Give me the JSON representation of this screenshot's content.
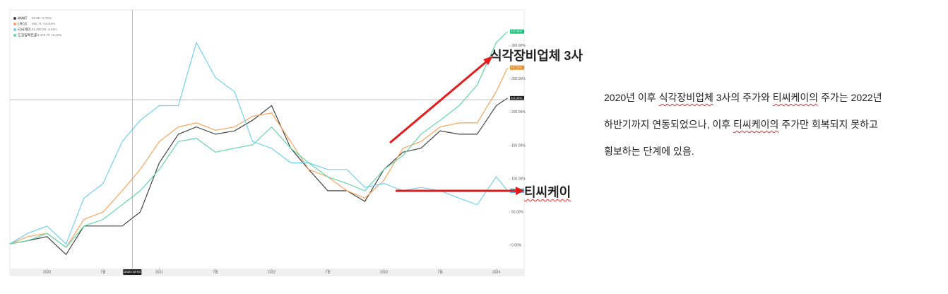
{
  "chart_data": {
    "type": "line",
    "x": [
      2019.67,
      2019.83,
      2020.0,
      2020.17,
      2020.33,
      2020.5,
      2020.67,
      2020.83,
      2021.0,
      2021.17,
      2021.33,
      2021.5,
      2021.67,
      2021.83,
      2022.0,
      2022.17,
      2022.33,
      2022.5,
      2022.67,
      2022.83,
      2023.0,
      2023.17,
      2023.33,
      2023.5,
      2023.67,
      2023.83,
      2024.0,
      2024.1
    ],
    "series": [
      {
        "name": "AMAT",
        "legend_note": "93.29 +8.70%",
        "color": "#444444",
        "badge_color": "#222222",
        "end_label": "221.30%",
        "values": [
          2,
          7,
          13,
          -14,
          29,
          29,
          29,
          50,
          124,
          167,
          178,
          167,
          172,
          188,
          210,
          146,
          114,
          82,
          82,
          66,
          114,
          140,
          146,
          172,
          167,
          167,
          210,
          221.3
        ]
      },
      {
        "name": "LRCX",
        "legend_note": "362.71 +10.54%",
        "color": "#f5a35c",
        "badge_color": "#f08c1e",
        "end_label": "267.20%",
        "values": [
          2,
          13,
          18,
          -3,
          39,
          50,
          82,
          114,
          156,
          178,
          184,
          173,
          178,
          194,
          199,
          156,
          114,
          103,
          82,
          71,
          98,
          146,
          156,
          178,
          184,
          184,
          231,
          267.2
        ]
      },
      {
        "name": "티씨케이",
        "legend_note": "91,000.00 -4.51%",
        "color": "#72d0f0",
        "badge_color": "#2bb4e8",
        "end_label": "82.10%",
        "values": [
          2,
          18,
          29,
          2,
          71,
          93,
          156,
          188,
          210,
          210,
          305,
          252,
          231,
          156,
          146,
          124,
          124,
          114,
          114,
          87,
          93,
          82,
          87,
          82,
          71,
          61,
          103,
          82.1
        ]
      },
      {
        "name": "도쿄일렉트론",
        "legend_note": "9,470.70 +8.14%",
        "color": "#62d6a8",
        "badge_color": "#22c07a",
        "end_label": "321.40%",
        "values": [
          2,
          7,
          18,
          -3,
          29,
          39,
          61,
          82,
          114,
          156,
          161,
          140,
          146,
          151,
          178,
          146,
          124,
          103,
          93,
          82,
          114,
          135,
          167,
          188,
          210,
          241,
          305,
          321.4
        ]
      }
    ],
    "xlim": [
      2019.67,
      2024.11
    ],
    "xticks": [
      {
        "value": 2020,
        "label": "2020"
      },
      {
        "value": 2020.5,
        "label": "7월"
      },
      {
        "value": 2021,
        "label": "2021"
      },
      {
        "value": 2021.5,
        "label": "7월"
      },
      {
        "value": 2022,
        "label": "2022"
      },
      {
        "value": 2022.5,
        "label": "7월"
      },
      {
        "value": 2023,
        "label": "2023"
      },
      {
        "value": 2023.5,
        "label": "7월"
      },
      {
        "value": 2024,
        "label": "2024"
      }
    ],
    "ylim": [
      -35,
      354
    ],
    "yticks": [
      {
        "value": 0,
        "label": "0.00%"
      },
      {
        "value": 50,
        "label": "50.00%"
      },
      {
        "value": 100,
        "label": "100.00%"
      },
      {
        "value": 150,
        "label": "150.00%"
      },
      {
        "value": 200,
        "label": "200.00%"
      },
      {
        "value": 250,
        "label": "250.00%"
      },
      {
        "value": 300,
        "label": "300.00%"
      }
    ],
    "crosshair": {
      "x": {
        "value": 2020.76,
        "label": "2020-10-04"
      },
      "y": 219
    },
    "annotations": [
      "식각장비업체 3사",
      "티씨케이"
    ]
  },
  "paragraph": [
    [
      "2020년 이후 ",
      "식각장비업체",
      " 3사의 주가와 ",
      "티씨케이의",
      " 주가는 2022년"
    ],
    [
      "하반기까지 연동되었으나, 이후 ",
      "티씨케이의",
      " 주가만 회복되지 못하고"
    ],
    [
      "횡보하는 단계에 있음."
    ]
  ]
}
